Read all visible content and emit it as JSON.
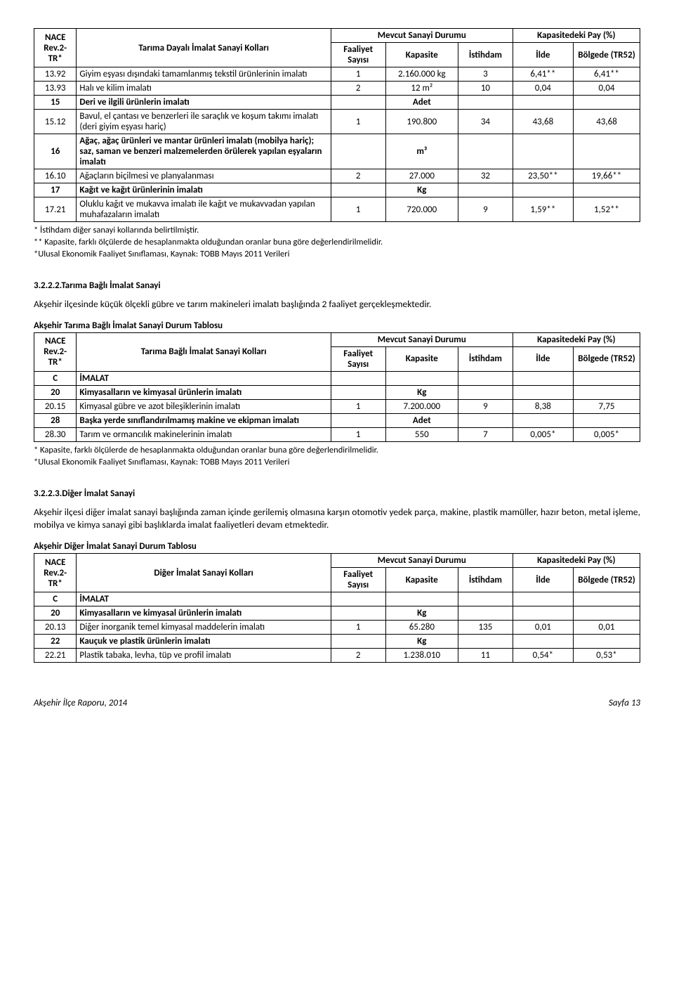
{
  "table1": {
    "headers": {
      "nace": "NACE Rev.2-TR*",
      "kollari": "Tarıma Dayalı İmalat Sanayi Kolları",
      "mevcut": "Mevcut Sanayi Durumu",
      "kapasitedeki": "Kapasitedeki Pay (%)",
      "faaliyet": "Faaliyet Sayısı",
      "kapasite": "Kapasite",
      "istihdam": "İstihdam",
      "ilde": "İlde",
      "bolgede": "Bölgede (TR52)"
    },
    "rows": [
      {
        "code": "13.92",
        "desc": "Giyim eşyası dışındaki tamamlanmış tekstil ürünlerinin imalatı",
        "fs": "1",
        "kap": "2.160.000 kg",
        "ist": "3",
        "ilde": "6,41**",
        "bol": "6,41**"
      },
      {
        "code": "13.93",
        "desc": "Halı ve kilim imalatı",
        "fs": "2",
        "kap": "12 m²",
        "ist": "10",
        "ilde": "0,04",
        "bol": "0,04"
      },
      {
        "code": "15",
        "desc": "Deri ve ilgili ürünlerin imalatı",
        "bold": true,
        "fs": "",
        "kap": "Adet",
        "ist": "",
        "ilde": "",
        "bol": ""
      },
      {
        "code": "15.12",
        "desc": "Bavul, el çantası ve benzerleri ile saraçlık ve koşum takımı imalatı (deri giyim eşyası hariç)",
        "fs": "1",
        "kap": "190.800",
        "ist": "34",
        "ilde": "43,68",
        "bol": "43,68"
      },
      {
        "code": "16",
        "desc": "Ağaç, ağaç ürünleri ve mantar ürünleri imalatı (mobilya hariç); saz, saman ve benzeri malzemelerden örülerek yapılan eşyaların imalatı",
        "bold": true,
        "fs": "",
        "kap": "m³",
        "ist": "",
        "ilde": "",
        "bol": ""
      },
      {
        "code": "16.10",
        "desc": "Ağaçların biçilmesi ve planyalanması",
        "fs": "2",
        "kap": "27.000",
        "ist": "32",
        "ilde": "23,50**",
        "bol": "19,66**"
      },
      {
        "code": "17",
        "desc": "Kağıt ve kağıt ürünlerinin imalatı",
        "bold": true,
        "fs": "",
        "kap": "Kg",
        "ist": "",
        "ilde": "",
        "bol": ""
      },
      {
        "code": "17.21",
        "desc": "Oluklu kağıt ve mukavva imalatı ile kağıt ve mukavvadan yapılan muhafazaların imalatı",
        "fs": "1",
        "kap": "720.000",
        "ist": "9",
        "ilde": "1,59**",
        "bol": "1,52**"
      }
    ]
  },
  "notes1": [
    "* İstihdam diğer sanayi kollarında belirtilmiştir.",
    " ** Kapasite, farklı ölçülerde de hesaplanmakta olduğundan oranlar buna göre değerlendirilmelidir.",
    "*Ulusal Ekonomik Faaliyet Sınıflaması, Kaynak: TOBB Mayıs 2011 Verileri"
  ],
  "section2": {
    "heading": "3.2.2.2.Tarıma Bağlı İmalat Sanayi",
    "para": "Akşehir ilçesinde küçük ölçekli gübre ve tarım makineleri imalatı başlığında 2 faaliyet gerçekleşmektedir.",
    "tabletitle": "Akşehir Tarıma Bağlı İmalat Sanayi Durum Tablosu"
  },
  "table2": {
    "headers_kol": "Tarıma Bağlı İmalat Sanayi Kolları",
    "rows": [
      {
        "code": "C",
        "desc": "İMALAT",
        "bold": true,
        "fs": "",
        "kap": "",
        "ist": "",
        "ilde": "",
        "bol": ""
      },
      {
        "code": "20",
        "desc": "Kimyasalların ve kimyasal ürünlerin imalatı",
        "bold": true,
        "fs": "",
        "kap": "Kg",
        "ist": "",
        "ilde": "",
        "bol": ""
      },
      {
        "code": "20.15",
        "desc": "Kimyasal gübre ve azot bileşiklerinin imalatı",
        "fs": "1",
        "kap": "7.200.000",
        "ist": "9",
        "ilde": "8,38",
        "bol": "7,75"
      },
      {
        "code": "28",
        "desc": "Başka yerde sınıflandırılmamış makine ve ekipman imalatı",
        "bold": true,
        "fs": "",
        "kap": "Adet",
        "ist": "",
        "ilde": "",
        "bol": ""
      },
      {
        "code": "28.30",
        "desc": "Tarım ve ormancılık makinelerinin imalatı",
        "fs": "1",
        "kap": "550",
        "ist": "7",
        "ilde": "0,005*",
        "bol": "0,005*"
      }
    ]
  },
  "notes2": [
    "* Kapasite, farklı ölçülerde de hesaplanmakta olduğundan oranlar buna göre değerlendirilmelidir.",
    "*Ulusal Ekonomik Faaliyet Sınıflaması, Kaynak: TOBB Mayıs 2011 Verileri"
  ],
  "section3": {
    "heading": "3.2.2.3.Diğer İmalat Sanayi",
    "para": "Akşehir ilçesi diğer imalat sanayi başlığında zaman içinde gerilemiş olmasına karşın otomotiv yedek parça, makine, plastik mamüller, hazır beton, metal işleme, mobilya ve kimya sanayi gibi başlıklarda imalat faaliyetleri devam etmektedir.",
    "tabletitle": "Akşehir Diğer İmalat Sanayi Durum Tablosu"
  },
  "table3": {
    "headers_kol": "Diğer İmalat Sanayi Kolları",
    "rows": [
      {
        "code": "C",
        "desc": "İMALAT",
        "bold": true,
        "fs": "",
        "kap": "",
        "ist": "",
        "ilde": "",
        "bol": ""
      },
      {
        "code": "20",
        "desc": "Kimyasalların ve kimyasal ürünlerin imalatı",
        "bold": true,
        "fs": "",
        "kap": "Kg",
        "ist": "",
        "ilde": "",
        "bol": ""
      },
      {
        "code": "20.13",
        "desc": "Diğer inorganik temel kimyasal maddelerin imalatı",
        "fs": "1",
        "kap": "65.280",
        "ist": "135",
        "ilde": "0,01",
        "bol": "0,01"
      },
      {
        "code": "22",
        "desc": "Kauçuk ve plastik ürünlerin imalatı",
        "bold": true,
        "fs": "",
        "kap": "Kg",
        "ist": "",
        "ilde": "",
        "bol": ""
      },
      {
        "code": "22.21",
        "desc": "Plastik tabaka, levha, tüp ve profil imalatı",
        "fs": "2",
        "kap": "1.238.010",
        "ist": "11",
        "ilde": "0,54*",
        "bol": "0,53*"
      }
    ]
  },
  "footer": {
    "left": "Akşehir İlçe Raporu, 2014",
    "right": "Sayfa 13"
  }
}
